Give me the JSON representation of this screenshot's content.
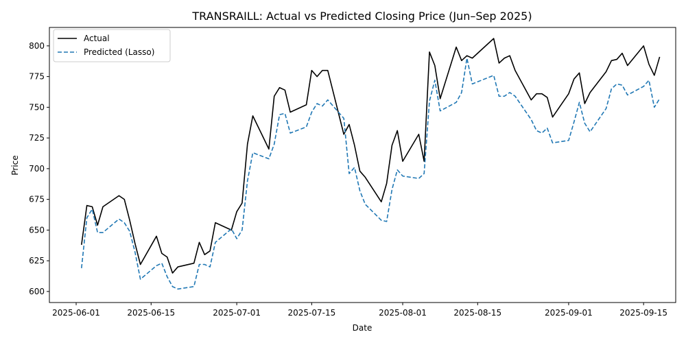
{
  "chart_data": {
    "type": "line",
    "title": "TRANSRAILL: Actual vs Predicted Closing Price (Jun–Sep 2025)",
    "xlabel": "Date",
    "ylabel": "Price",
    "xlim": [
      "2025-05-27",
      "2025-09-21"
    ],
    "ylim": [
      591,
      815
    ],
    "x_ticks": [
      "2025-06-01",
      "2025-06-15",
      "2025-07-01",
      "2025-07-15",
      "2025-08-01",
      "2025-08-15",
      "2025-09-01",
      "2025-09-15"
    ],
    "y_ticks": [
      600,
      625,
      650,
      675,
      700,
      725,
      750,
      775,
      800
    ],
    "grid": false,
    "legend_position": "top-left",
    "series": [
      {
        "name": "Actual",
        "color": "#000000",
        "style": "solid",
        "points": [
          [
            "2025-06-02",
            638
          ],
          [
            "2025-06-03",
            670
          ],
          [
            "2025-06-04",
            669
          ],
          [
            "2025-06-05",
            654
          ],
          [
            "2025-06-06",
            669
          ],
          [
            "2025-06-09",
            678
          ],
          [
            "2025-06-10",
            675
          ],
          [
            "2025-06-11",
            658
          ],
          [
            "2025-06-12",
            639
          ],
          [
            "2025-06-13",
            622
          ],
          [
            "2025-06-16",
            645
          ],
          [
            "2025-06-17",
            631
          ],
          [
            "2025-06-18",
            628
          ],
          [
            "2025-06-19",
            615
          ],
          [
            "2025-06-20",
            620
          ],
          [
            "2025-06-23",
            623
          ],
          [
            "2025-06-24",
            640
          ],
          [
            "2025-06-25",
            630
          ],
          [
            "2025-06-26",
            633
          ],
          [
            "2025-06-27",
            656
          ],
          [
            "2025-06-30",
            650
          ],
          [
            "2025-07-01",
            665
          ],
          [
            "2025-07-02",
            672
          ],
          [
            "2025-07-03",
            720
          ],
          [
            "2025-07-04",
            743
          ],
          [
            "2025-07-07",
            716
          ],
          [
            "2025-07-08",
            759
          ],
          [
            "2025-07-09",
            766
          ],
          [
            "2025-07-10",
            764
          ],
          [
            "2025-07-11",
            746
          ],
          [
            "2025-07-14",
            752
          ],
          [
            "2025-07-15",
            780
          ],
          [
            "2025-07-16",
            775
          ],
          [
            "2025-07-17",
            780
          ],
          [
            "2025-07-18",
            780
          ],
          [
            "2025-07-21",
            728
          ],
          [
            "2025-07-22",
            736
          ],
          [
            "2025-07-23",
            719
          ],
          [
            "2025-07-24",
            698
          ],
          [
            "2025-07-25",
            693
          ],
          [
            "2025-07-28",
            673
          ],
          [
            "2025-07-29",
            688
          ],
          [
            "2025-07-30",
            719
          ],
          [
            "2025-07-31",
            731
          ],
          [
            "2025-08-01",
            706
          ],
          [
            "2025-08-04",
            728
          ],
          [
            "2025-08-05",
            706
          ],
          [
            "2025-08-06",
            795
          ],
          [
            "2025-08-07",
            784
          ],
          [
            "2025-08-08",
            757
          ],
          [
            "2025-08-11",
            799
          ],
          [
            "2025-08-12",
            788
          ],
          [
            "2025-08-13",
            792
          ],
          [
            "2025-08-14",
            790
          ],
          [
            "2025-08-18",
            806
          ],
          [
            "2025-08-19",
            786
          ],
          [
            "2025-08-20",
            790
          ],
          [
            "2025-08-21",
            792
          ],
          [
            "2025-08-22",
            780
          ],
          [
            "2025-08-25",
            756
          ],
          [
            "2025-08-26",
            761
          ],
          [
            "2025-08-27",
            761
          ],
          [
            "2025-08-28",
            758
          ],
          [
            "2025-08-29",
            742
          ],
          [
            "2025-09-01",
            761
          ],
          [
            "2025-09-02",
            773
          ],
          [
            "2025-09-03",
            778
          ],
          [
            "2025-09-04",
            753
          ],
          [
            "2025-09-05",
            762
          ],
          [
            "2025-09-08",
            779
          ],
          [
            "2025-09-09",
            788
          ],
          [
            "2025-09-10",
            789
          ],
          [
            "2025-09-11",
            794
          ],
          [
            "2025-09-12",
            784
          ],
          [
            "2025-09-15",
            800
          ],
          [
            "2025-09-16",
            785
          ],
          [
            "2025-09-17",
            776
          ],
          [
            "2025-09-18",
            791
          ]
        ]
      },
      {
        "name": "Predicted (Lasso)",
        "color": "#1f77b4",
        "style": "dashed",
        "points": [
          [
            "2025-06-02",
            619
          ],
          [
            "2025-06-03",
            660
          ],
          [
            "2025-06-04",
            667
          ],
          [
            "2025-06-05",
            648
          ],
          [
            "2025-06-06",
            648
          ],
          [
            "2025-06-09",
            659
          ],
          [
            "2025-06-10",
            656
          ],
          [
            "2025-06-11",
            649
          ],
          [
            "2025-06-12",
            632
          ],
          [
            "2025-06-13",
            610
          ],
          [
            "2025-06-16",
            621
          ],
          [
            "2025-06-17",
            623
          ],
          [
            "2025-06-18",
            612
          ],
          [
            "2025-06-19",
            604
          ],
          [
            "2025-06-20",
            602
          ],
          [
            "2025-06-23",
            604
          ],
          [
            "2025-06-24",
            622
          ],
          [
            "2025-06-25",
            622
          ],
          [
            "2025-06-26",
            620
          ],
          [
            "2025-06-27",
            640
          ],
          [
            "2025-06-30",
            651
          ],
          [
            "2025-07-01",
            643
          ],
          [
            "2025-07-02",
            650
          ],
          [
            "2025-07-03",
            690
          ],
          [
            "2025-07-04",
            713
          ],
          [
            "2025-07-07",
            708
          ],
          [
            "2025-07-08",
            720
          ],
          [
            "2025-07-09",
            744
          ],
          [
            "2025-07-10",
            745
          ],
          [
            "2025-07-11",
            729
          ],
          [
            "2025-07-14",
            734
          ],
          [
            "2025-07-15",
            746
          ],
          [
            "2025-07-16",
            753
          ],
          [
            "2025-07-17",
            751
          ],
          [
            "2025-07-18",
            756
          ],
          [
            "2025-07-21",
            741
          ],
          [
            "2025-07-22",
            696
          ],
          [
            "2025-07-23",
            701
          ],
          [
            "2025-07-24",
            682
          ],
          [
            "2025-07-25",
            671
          ],
          [
            "2025-07-28",
            658
          ],
          [
            "2025-07-29",
            657
          ],
          [
            "2025-07-30",
            683
          ],
          [
            "2025-07-31",
            699
          ],
          [
            "2025-08-01",
            694
          ],
          [
            "2025-08-04",
            692
          ],
          [
            "2025-08-05",
            696
          ],
          [
            "2025-08-06",
            755
          ],
          [
            "2025-08-07",
            772
          ],
          [
            "2025-08-08",
            747
          ],
          [
            "2025-08-11",
            754
          ],
          [
            "2025-08-12",
            762
          ],
          [
            "2025-08-13",
            790
          ],
          [
            "2025-08-14",
            769
          ],
          [
            "2025-08-18",
            776
          ],
          [
            "2025-08-19",
            759
          ],
          [
            "2025-08-20",
            759
          ],
          [
            "2025-08-21",
            762
          ],
          [
            "2025-08-22",
            759
          ],
          [
            "2025-08-25",
            740
          ],
          [
            "2025-08-26",
            731
          ],
          [
            "2025-08-27",
            729
          ],
          [
            "2025-08-28",
            733
          ],
          [
            "2025-08-29",
            721
          ],
          [
            "2025-09-01",
            723
          ],
          [
            "2025-09-02",
            738
          ],
          [
            "2025-09-03",
            754
          ],
          [
            "2025-09-04",
            737
          ],
          [
            "2025-09-05",
            730
          ],
          [
            "2025-09-08",
            749
          ],
          [
            "2025-09-09",
            765
          ],
          [
            "2025-09-10",
            769
          ],
          [
            "2025-09-11",
            768
          ],
          [
            "2025-09-12",
            760
          ],
          [
            "2025-09-15",
            767
          ],
          [
            "2025-09-16",
            772
          ],
          [
            "2025-09-17",
            750
          ],
          [
            "2025-09-18",
            757
          ]
        ]
      }
    ]
  }
}
